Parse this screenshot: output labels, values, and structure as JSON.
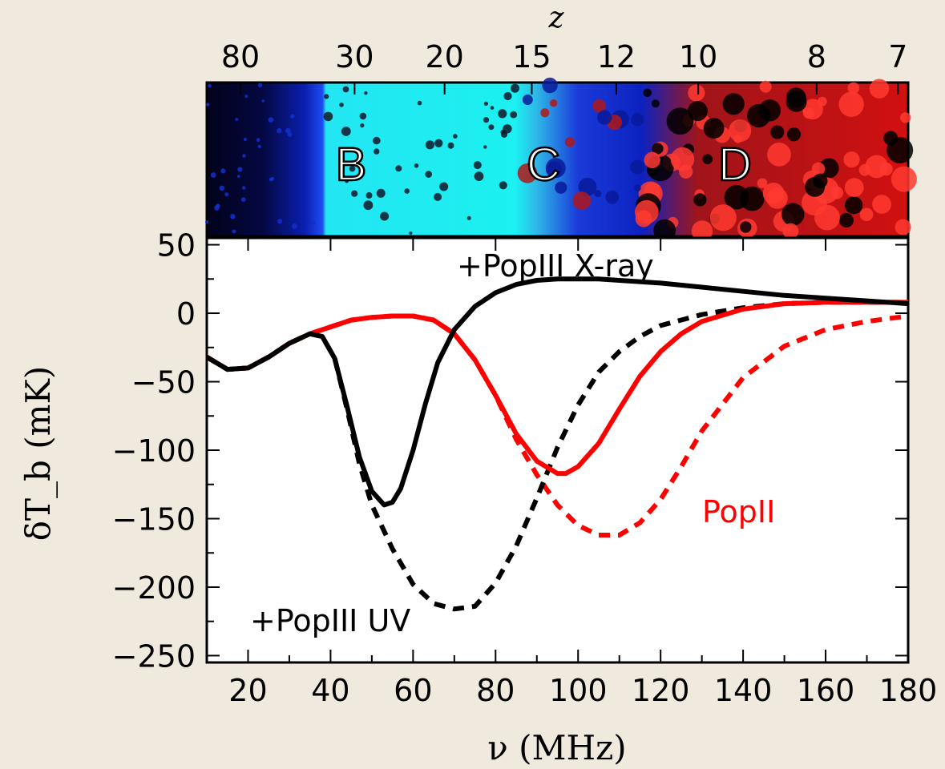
{
  "chart_data": [
    {
      "type": "heatmap",
      "title": "",
      "xlabel": "z",
      "x_ticks_z": [
        "80",
        "30",
        "20",
        "15",
        "12",
        "10",
        "8",
        "7"
      ],
      "annotations": [
        "B",
        "C",
        "D"
      ],
      "description_colors": {
        "cold": "#000022",
        "mid": "#0a1fd6",
        "bright": "#00f0f0",
        "hot": "#e01010"
      }
    },
    {
      "type": "line",
      "title": "",
      "xlabel": "ν (MHz)",
      "ylabel": "δT_b (mK)",
      "xlim": [
        10,
        180
      ],
      "ylim": [
        -255,
        55
      ],
      "x_ticks": [
        "20",
        "40",
        "60",
        "80",
        "100",
        "120",
        "140",
        "160",
        "180"
      ],
      "y_ticks": [
        "50",
        "0",
        "−50",
        "−100",
        "−150",
        "−200",
        "−250"
      ],
      "annotations": [
        {
          "text": "+PopIII X-ray",
          "color": "#000000"
        },
        {
          "text": "+PopIII UV",
          "color": "#000000"
        },
        {
          "text": "PopII",
          "color": "#ff0000"
        }
      ],
      "series": [
        {
          "name": "PopII",
          "color": "#ff0000",
          "style": "solid",
          "x": [
            10,
            15,
            20,
            25,
            30,
            35,
            40,
            45,
            50,
            55,
            60,
            65,
            70,
            75,
            80,
            85,
            90,
            95,
            97,
            100,
            105,
            110,
            115,
            120,
            125,
            130,
            140,
            150,
            160,
            170,
            180
          ],
          "y": [
            -32,
            -41,
            -40,
            -32,
            -22,
            -15,
            -10,
            -5,
            -3,
            -2,
            -2,
            -5,
            -15,
            -34,
            -60,
            -88,
            -108,
            -117,
            -117,
            -112,
            -95,
            -70,
            -46,
            -28,
            -15,
            -6,
            3,
            7,
            8,
            8,
            8
          ]
        },
        {
          "name": "PopII (dashed)",
          "color": "#ff0000",
          "style": "dashed",
          "x": [
            10,
            15,
            20,
            25,
            30,
            35,
            40,
            45,
            50,
            55,
            60,
            65,
            70,
            75,
            80,
            85,
            90,
            95,
            100,
            105,
            110,
            115,
            120,
            125,
            130,
            140,
            150,
            160,
            170,
            180
          ],
          "y": [
            -32,
            -41,
            -40,
            -32,
            -22,
            -15,
            -10,
            -5,
            -3,
            -2,
            -2,
            -5,
            -15,
            -34,
            -60,
            -92,
            -118,
            -140,
            -155,
            -162,
            -162,
            -153,
            -136,
            -112,
            -86,
            -47,
            -24,
            -12,
            -6,
            -2
          ]
        },
        {
          "name": "+PopIII X-ray",
          "color": "#000000",
          "style": "solid",
          "x": [
            10,
            15,
            20,
            25,
            30,
            35,
            38,
            41,
            44,
            47,
            50,
            53,
            55,
            57,
            60,
            63,
            66,
            70,
            75,
            80,
            85,
            90,
            95,
            100,
            105,
            110,
            120,
            130,
            140,
            150,
            160,
            170,
            180
          ],
          "y": [
            -32,
            -41,
            -40,
            -32,
            -22,
            -15,
            -17,
            -33,
            -68,
            -105,
            -130,
            -140,
            -138,
            -128,
            -100,
            -66,
            -36,
            -12,
            5,
            15,
            21,
            24,
            25,
            25,
            25,
            24,
            22,
            19,
            16,
            13,
            11,
            9,
            7
          ]
        },
        {
          "name": "+PopIII UV",
          "color": "#000000",
          "style": "dashed",
          "x": [
            10,
            15,
            20,
            25,
            30,
            35,
            38,
            41,
            44,
            47,
            50,
            55,
            60,
            65,
            70,
            75,
            80,
            85,
            90,
            95,
            100,
            105,
            110,
            115,
            120,
            130,
            140,
            150,
            160,
            170,
            180
          ],
          "y": [
            -32,
            -41,
            -40,
            -32,
            -22,
            -15,
            -17,
            -33,
            -70,
            -110,
            -140,
            -172,
            -198,
            -212,
            -216,
            -214,
            -197,
            -170,
            -135,
            -98,
            -67,
            -43,
            -28,
            -17,
            -9,
            -1,
            4,
            7,
            8,
            8,
            8
          ]
        }
      ]
    }
  ]
}
